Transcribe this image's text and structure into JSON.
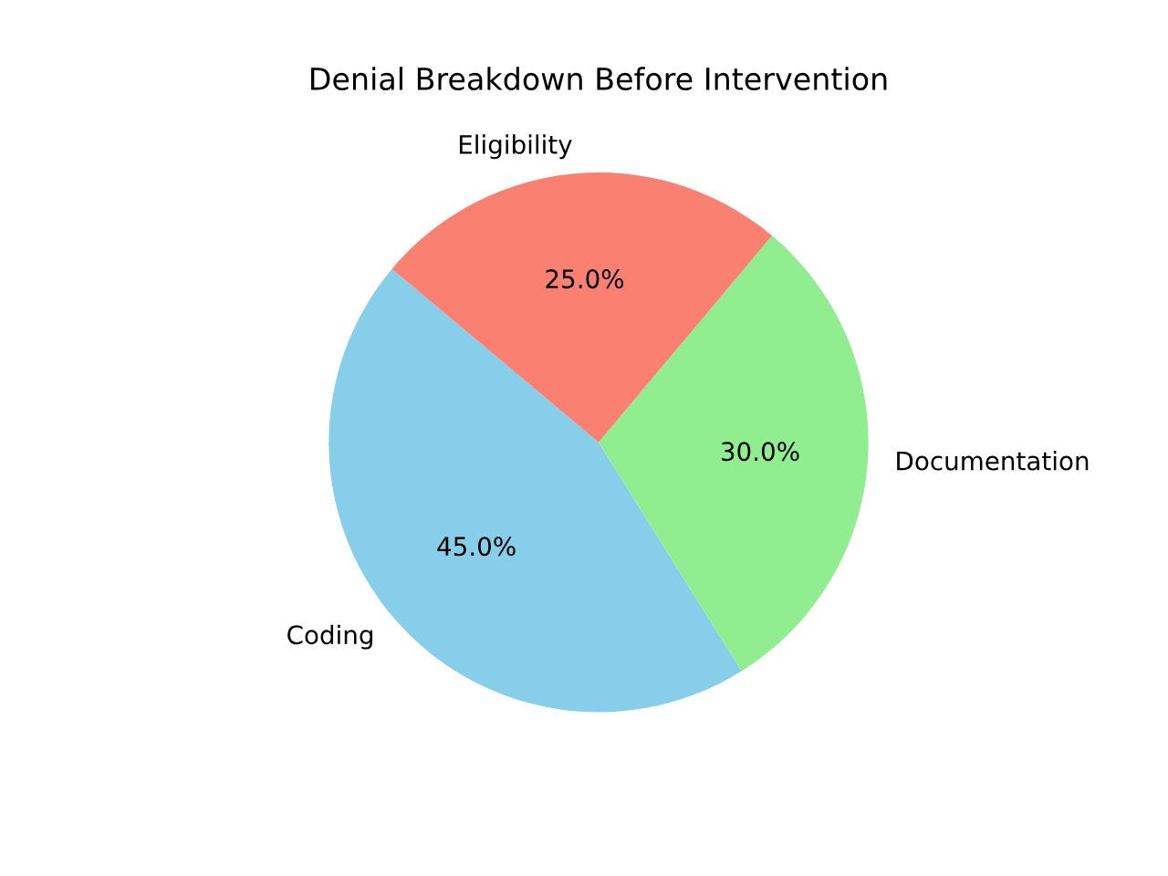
{
  "chart_data": {
    "type": "pie",
    "title": "Denial Breakdown Before Intervention",
    "categories": [
      "Coding",
      "Documentation",
      "Eligibility"
    ],
    "values": [
      45,
      30,
      25
    ],
    "value_labels": [
      "45.0%",
      "30.0%",
      "25.0%"
    ],
    "colors": [
      "#87ceeb",
      "#90ee90",
      "#fa8072"
    ]
  }
}
